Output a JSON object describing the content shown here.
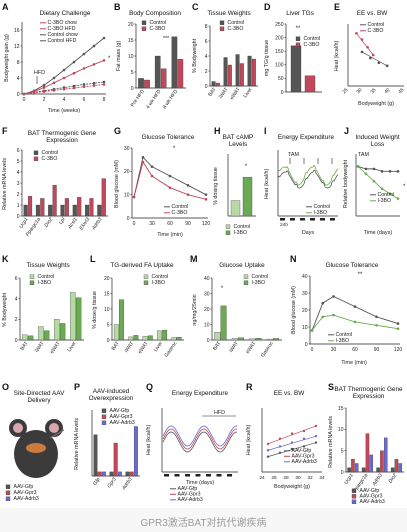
{
  "colors": {
    "control": "#555555",
    "treat": "#c0485a",
    "treat_light": "#e3a0aa",
    "green": "#6aaa52",
    "green_light": "#b7d9a6",
    "aav_gfp": "#555555",
    "aav_gpr3": "#c0485a",
    "aav_adrb3": "#6a6ad0"
  },
  "panels": {
    "A": {
      "label": "A",
      "title": "Dietary Challenge",
      "ylabel": "Bodyweight gain (g)",
      "xlabel": "Time (weeks)",
      "legend": [
        "C-3BO chow",
        "C-3BO HFD",
        "Control chow",
        "Control HFD"
      ],
      "annotation": "HFD",
      "star": "*"
    },
    "B": {
      "label": "B",
      "title": "Body Composition",
      "ylabel": "Fat mass (g)",
      "legend": [
        "Control",
        "C-3BO"
      ],
      "star": "***",
      "cats": [
        "Pre HFD",
        "4 wk HFD",
        "8 wk HFD"
      ]
    },
    "C": {
      "label": "C",
      "title": "Tissue Weights",
      "ylabel": "% Bodyweight",
      "legend": [
        "Control",
        "C-3BO"
      ],
      "cats": [
        "BAT",
        "iWAT",
        "eWAT",
        "Liver"
      ]
    },
    "D": {
      "label": "D",
      "title": "Liver TGs",
      "ylabel": "mg TG/g tissue",
      "legend": [
        "Control",
        "C-3BO"
      ],
      "star": "**"
    },
    "E": {
      "label": "E",
      "title": "EE vs. BW",
      "ylabel": "Heat (kcal/h)",
      "xlabel": "Bodyweight (g)",
      "legend": [
        "Control",
        "C-3BO"
      ],
      "xticks": [
        "25",
        "30",
        "35",
        "40",
        "45"
      ]
    },
    "F": {
      "label": "F",
      "title": "BAT Thermogenic Gene Expression",
      "ylabel": "Relative mRNA levels",
      "legend": [
        "Control",
        "C-3BO"
      ],
      "cats": [
        "Ucp1",
        "Ppargc1a",
        "Dio2",
        "Lpl",
        "Acsl1",
        "Elovl3",
        "Adrb3"
      ]
    },
    "G": {
      "label": "G",
      "title": "Glucose Tolerance",
      "ylabel": "Blood glucose (mM)",
      "xlabel": "Time (min)",
      "legend": [
        "Control",
        "C-3BO"
      ],
      "xticks": [
        "0",
        "30",
        "60",
        "90",
        "120"
      ],
      "star": "*"
    },
    "H": {
      "label": "H",
      "title": "BAT cAMP Levels",
      "ylabel": "% dosing tissue",
      "legend": [
        "Control",
        "I-3BO"
      ],
      "star": "*"
    },
    "I": {
      "label": "I",
      "title": "Energy Expenditure",
      "ylabel": "Heat (kcal/h)",
      "xlabel": "Days",
      "annotation": "TAM",
      "legend": [
        "Control",
        "I-3BO"
      ],
      "xticks": [
        "24h"
      ]
    },
    "J": {
      "label": "J",
      "title": "Induced Weight Loss",
      "ylabel": "Relative bodyweight",
      "xlabel": "Time (days)",
      "annotation": "TAM",
      "legend": [
        "Control",
        "I-3BO"
      ],
      "star": "*"
    },
    "K": {
      "label": "K",
      "title": "Tissue Weights",
      "ylabel": "% Bodyweight",
      "legend": [
        "Control",
        "I-3BO"
      ],
      "cats": [
        "BAT",
        "iWAT",
        "eWAT",
        "Liver"
      ]
    },
    "L": {
      "label": "L",
      "title": "TG-derived FA Uptake",
      "ylabel": "% dose/g tissue",
      "legend": [
        "Control",
        "I-3BO"
      ],
      "cats": [
        "BAT",
        "iWAT",
        "eWAT",
        "Liver",
        "Gastroc"
      ]
    },
    "M": {
      "label": "M",
      "title": "Glucose Uptake",
      "ylabel": "ng/mg/25min",
      "legend": [
        "Control",
        "I-3BO"
      ],
      "cats": [
        "BAT",
        "iWAT",
        "eWAT",
        "Gastroc"
      ],
      "star": "*"
    },
    "N": {
      "label": "N",
      "title": "Glucose Tolerance",
      "ylabel": "Blood glucose (mM)",
      "xlabel": "Time (min)",
      "legend": [
        "Control",
        "I-3BO"
      ],
      "xticks": [
        "0",
        "30",
        "60",
        "90",
        "120"
      ],
      "star": "**"
    },
    "O": {
      "label": "O",
      "title": "Site-Directed AAV Delivery",
      "legend": [
        "AAV-Gfp",
        "AAV-Gpr3",
        "AAV-Adrb3"
      ]
    },
    "P": {
      "label": "P",
      "title": "AAV-induced Overexpression",
      "ylabel": "Relative mRNA levels",
      "legend": [
        "AAV-Gfp",
        "AAV-Gpr3",
        "AAV-Adrb3"
      ],
      "cats": [
        "Gfp",
        "Gpr3",
        "Adrb3"
      ]
    },
    "Q": {
      "label": "Q",
      "title": "Energy Expenditure",
      "ylabel": "Heat (kcal/h)",
      "xlabel": "Time (days)",
      "annotation": "HFD",
      "legend": [
        "AAV-Gfp",
        "AAV-Gpr3",
        "AAV-Adrb3"
      ]
    },
    "R": {
      "label": "R",
      "title": "EE vs. BW",
      "ylabel": "Heat (kcal/h)",
      "xlabel": "Bodyweight (g)",
      "legend": [
        "AAV-Gfp",
        "AAV-Gpr3",
        "AAV-Adrb3"
      ],
      "xticks": [
        "24",
        "26",
        "28",
        "30",
        "32",
        "34"
      ]
    },
    "S": {
      "label": "S",
      "title": "BAT Thermogenic Gene Expression",
      "ylabel": "Relative mRNA levels",
      "legend": [
        "AAV-Gfp",
        "AAV-Gpr3",
        "AAV-Adrb3"
      ],
      "cats": [
        "Ucp1",
        "Ppargc1a",
        "Adrb3",
        "Dio2"
      ]
    }
  },
  "chart_data": [
    {
      "panel": "A",
      "type": "line",
      "x": [
        0,
        1,
        2,
        3,
        4,
        5,
        6,
        7,
        8
      ],
      "series": [
        {
          "name": "Control chow",
          "values": [
            0,
            0.4,
            0.8,
            1.2,
            1.6,
            2.0,
            2.4,
            2.7,
            3.0
          ]
        },
        {
          "name": "Control HFD",
          "values": [
            0,
            0.8,
            2.2,
            4.0,
            6.0,
            8.0,
            10.0,
            12.0,
            14.0
          ]
        },
        {
          "name": "C-3BO chow",
          "values": [
            0,
            0.3,
            0.6,
            0.9,
            1.2,
            1.5,
            1.8,
            2.1,
            2.4
          ]
        },
        {
          "name": "C-3BO HFD",
          "values": [
            0,
            0.6,
            1.6,
            2.8,
            4.0,
            5.2,
            6.4,
            7.4,
            8.4
          ]
        }
      ],
      "ylim": [
        0,
        18
      ],
      "yticks": [
        0,
        4,
        8,
        12,
        16
      ]
    },
    {
      "panel": "B",
      "type": "bar",
      "categories": [
        "Pre HFD",
        "4 wk HFD",
        "8 wk HFD"
      ],
      "series": [
        {
          "name": "Control",
          "values": [
            3,
            10,
            16
          ]
        },
        {
          "name": "C-3BO",
          "values": [
            2.5,
            6,
            9
          ]
        }
      ],
      "ylim": [
        0,
        20
      ],
      "yticks": [
        0,
        5,
        10,
        15,
        20
      ]
    },
    {
      "panel": "C",
      "type": "bar",
      "categories": [
        "BAT",
        "iWAT",
        "eWAT",
        "Liver"
      ],
      "series": [
        {
          "name": "Control",
          "values": [
            0.6,
            3.8,
            4.2,
            4.0
          ]
        },
        {
          "name": "C-3BO",
          "values": [
            0.4,
            2.8,
            3.0,
            3.6
          ]
        }
      ],
      "ylim": [
        0,
        8
      ],
      "yticks": [
        0,
        2,
        4,
        6,
        8
      ]
    },
    {
      "panel": "D",
      "type": "bar",
      "categories": [
        "Control",
        "C-3BO"
      ],
      "series": [
        {
          "name": "TG",
          "values": [
            170,
            60
          ]
        }
      ],
      "ylim": [
        0,
        250
      ],
      "yticks": [
        0,
        50,
        100,
        150,
        200,
        250
      ]
    },
    {
      "panel": "E",
      "type": "scatter",
      "series": [
        {
          "name": "Control",
          "x": [
            30,
            33,
            36,
            39
          ],
          "y": [
            0.52,
            0.48,
            0.45,
            0.43
          ]
        },
        {
          "name": "C-3BO",
          "x": [
            28,
            30,
            32,
            34
          ],
          "y": [
            0.64,
            0.6,
            0.55,
            0.5
          ]
        }
      ],
      "xlim": [
        25,
        45
      ],
      "ylim": [
        0.3,
        0.7
      ]
    },
    {
      "panel": "F",
      "type": "bar",
      "categories": [
        "Ucp1",
        "Ppargc1a",
        "Dio2",
        "Lpl",
        "Acsl1",
        "Elovl3",
        "Adrb3"
      ],
      "series": [
        {
          "name": "Control",
          "values": [
            1,
            1,
            1,
            1,
            1,
            1,
            1
          ]
        },
        {
          "name": "C-3BO",
          "values": [
            1.8,
            1.6,
            2.8,
            1.6,
            1.7,
            1.6,
            3.4
          ]
        }
      ],
      "ylim": [
        0,
        6
      ],
      "yticks": [
        0,
        1,
        2,
        3,
        4,
        5,
        6
      ]
    },
    {
      "panel": "G",
      "type": "line",
      "x": [
        0,
        15,
        30,
        60,
        90,
        120
      ],
      "series": [
        {
          "name": "Control",
          "values": [
            9,
            26,
            22,
            18,
            14,
            10
          ]
        },
        {
          "name": "C-3BO",
          "values": [
            9,
            24,
            18,
            13,
            10,
            8
          ]
        }
      ],
      "ylim": [
        0,
        30
      ],
      "yticks": [
        0,
        10,
        20,
        30
      ]
    },
    {
      "panel": "H",
      "type": "bar",
      "categories": [
        "Control",
        "I-3BO"
      ],
      "series": [
        {
          "name": "cAMP",
          "values": [
            40,
            100
          ]
        }
      ],
      "ylim": [
        0,
        160
      ],
      "yticks": [
        0,
        50,
        100,
        150
      ]
    },
    {
      "panel": "I",
      "type": "line",
      "series": [
        {
          "name": "Control"
        },
        {
          "name": "I-3BO"
        }
      ],
      "ylim": [
        0.3,
        0.8
      ]
    },
    {
      "panel": "J",
      "type": "line",
      "x": [
        0,
        1,
        2,
        3,
        4,
        5
      ],
      "series": [
        {
          "name": "Control",
          "values": [
            1.0,
            0.99,
            0.99,
            0.98,
            0.98,
            0.98
          ]
        },
        {
          "name": "I-3BO",
          "values": [
            1.0,
            0.97,
            0.94,
            0.91,
            0.89,
            0.87
          ]
        }
      ],
      "ylim": [
        0.8,
        1.05
      ]
    },
    {
      "panel": "K",
      "type": "bar",
      "categories": [
        "BAT",
        "iWAT",
        "eWAT",
        "Liver"
      ],
      "series": [
        {
          "name": "Control",
          "values": [
            0.5,
            1.3,
            2.0,
            4.6
          ]
        },
        {
          "name": "I-3BO",
          "values": [
            0.4,
            0.9,
            1.6,
            4.1
          ]
        }
      ],
      "ylim": [
        0,
        6
      ],
      "yticks": [
        0,
        2,
        4,
        6
      ]
    },
    {
      "panel": "L",
      "type": "bar",
      "categories": [
        "BAT",
        "iWAT",
        "eWAT",
        "Liver",
        "Gastroc"
      ],
      "series": [
        {
          "name": "Control",
          "values": [
            5,
            1,
            1.2,
            3,
            0.8
          ]
        },
        {
          "name": "I-3BO",
          "values": [
            13,
            1.5,
            1.4,
            3.2,
            0.9
          ]
        }
      ],
      "ylim": [
        0,
        20
      ],
      "yticks": [
        0,
        5,
        10,
        15,
        20
      ]
    },
    {
      "panel": "M",
      "type": "bar",
      "categories": [
        "BAT",
        "iWAT",
        "eWAT",
        "Gastroc"
      ],
      "series": [
        {
          "name": "Control",
          "values": [
            5,
            1,
            0.8,
            0.6
          ]
        },
        {
          "name": "I-3BO",
          "values": [
            22,
            1.4,
            1.2,
            1.0
          ]
        }
      ],
      "ylim": [
        0,
        40
      ],
      "yticks": [
        0,
        10,
        20,
        30,
        40
      ]
    },
    {
      "panel": "N",
      "type": "line",
      "x": [
        0,
        15,
        30,
        60,
        90,
        120
      ],
      "series": [
        {
          "name": "Control",
          "values": [
            8,
            24,
            28,
            22,
            16,
            12
          ]
        },
        {
          "name": "I-3BO",
          "values": [
            8,
            16,
            17,
            13,
            11,
            9
          ]
        }
      ],
      "ylim": [
        0,
        40
      ],
      "yticks": [
        0,
        10,
        20,
        30,
        40
      ]
    },
    {
      "panel": "P",
      "type": "bar",
      "categories": [
        "Gfp",
        "Gpr3",
        "Adrb3"
      ],
      "series": [
        {
          "name": "AAV-Gfp",
          "values": [
            5,
            0.5,
            0.5
          ]
        },
        {
          "name": "AAV-Gpr3",
          "values": [
            0.5,
            4,
            0.5
          ]
        },
        {
          "name": "AAV-Adrb3",
          "values": [
            0.5,
            0.5,
            6
          ]
        }
      ],
      "ylim": [
        0,
        8
      ]
    },
    {
      "panel": "Q",
      "type": "line",
      "series": [
        {
          "name": "AAV-Gfp"
        },
        {
          "name": "AAV-Gpr3"
        },
        {
          "name": "AAV-Adrb3"
        }
      ],
      "ylim": [
        0.2,
        0.8
      ]
    },
    {
      "panel": "R",
      "type": "scatter",
      "series": [
        {
          "name": "AAV-Gfp",
          "x": [
            25,
            27,
            29,
            31,
            33
          ],
          "y": [
            0.42,
            0.45,
            0.48,
            0.5,
            0.53
          ]
        },
        {
          "name": "AAV-Gpr3",
          "x": [
            25,
            27,
            29,
            31,
            33
          ],
          "y": [
            0.52,
            0.56,
            0.6,
            0.62,
            0.66
          ]
        },
        {
          "name": "AAV-Adrb3",
          "x": [
            25,
            27,
            29,
            31,
            33
          ],
          "y": [
            0.47,
            0.5,
            0.53,
            0.56,
            0.58
          ]
        }
      ],
      "xlim": [
        24,
        34
      ],
      "ylim": [
        0.3,
        0.8
      ]
    },
    {
      "panel": "S",
      "type": "bar",
      "categories": [
        "Ucp1",
        "Ppargc1a",
        "Adrb3",
        "Dio2"
      ],
      "series": [
        {
          "name": "AAV-Gfp",
          "values": [
            1,
            1,
            1,
            1
          ]
        },
        {
          "name": "AAV-Gpr3",
          "values": [
            3,
            9,
            5,
            3
          ]
        },
        {
          "name": "AAV-Adrb3",
          "values": [
            2,
            4,
            8,
            2
          ]
        }
      ],
      "ylim": [
        0,
        15
      ],
      "yticks": [
        0,
        5,
        10,
        15
      ]
    }
  ],
  "caption": "GPR3激活BAT对抗代谢疾病"
}
